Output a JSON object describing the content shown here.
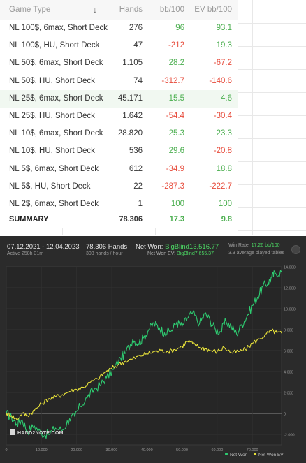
{
  "table": {
    "headers": {
      "type": "Game Type",
      "hands": "Hands",
      "bb": "bb/100",
      "ev": "EV bb/100"
    },
    "rows": [
      {
        "type": "NL 100$, 6max, Short Deck",
        "hands": "276",
        "bb": "96",
        "ev": "93.1"
      },
      {
        "type": "NL 100$, HU, Short Deck",
        "hands": "47",
        "bb": "-212",
        "ev": "19.3"
      },
      {
        "type": "NL 50$, 6max, Short Deck",
        "hands": "1.105",
        "bb": "28.2",
        "ev": "-67.2"
      },
      {
        "type": "NL 50$, HU, Short Deck",
        "hands": "74",
        "bb": "-312.7",
        "ev": "-140.6"
      },
      {
        "type": "NL 25$, 6max, Short Deck",
        "hands": "45.171",
        "bb": "15.5",
        "ev": "4.6"
      },
      {
        "type": "NL 25$, HU, Short Deck",
        "hands": "1.642",
        "bb": "-54.4",
        "ev": "-30.4"
      },
      {
        "type": "NL 10$, 6max, Short Deck",
        "hands": "28.820",
        "bb": "25.3",
        "ev": "23.3"
      },
      {
        "type": "NL 10$, HU, Short Deck",
        "hands": "536",
        "bb": "29.6",
        "ev": "-20.8"
      },
      {
        "type": "NL 5$, 6max, Short Deck",
        "hands": "612",
        "bb": "-34.9",
        "ev": "18.8"
      },
      {
        "type": "NL 5$, HU, Short Deck",
        "hands": "22",
        "bb": "-287.3",
        "ev": "-222.7"
      },
      {
        "type": "NL 2$, 6max, Short Deck",
        "hands": "1",
        "bb": "100",
        "ev": "100"
      }
    ],
    "summary": {
      "type": "SUMMARY",
      "hands": "78.306",
      "bb": "17.3",
      "ev": "9.8"
    }
  },
  "graph": {
    "date_range": "07.12.2021 - 12.04.2023",
    "active": "Active 258h 31m",
    "hands": "78.306 Hands",
    "rate": "303 hands / hour",
    "net_won_label": "Net Won:",
    "net_won_value": "BigBlind13,516.77",
    "ev_label": "Net Won EV:",
    "ev_value": "BigBlind7,655.37",
    "win_rate_label": "Win Rate:",
    "win_rate_value": "17.26 bb/100",
    "tables": "3.3 average played tables",
    "logo": "HAND2NOTE.COM",
    "legend_net": "Net Won",
    "legend_ev": "Net Won EV"
  },
  "chart_data": {
    "type": "line",
    "xlim": [
      0,
      78306
    ],
    "ylim": [
      -3000,
      14000
    ],
    "x_ticks": [
      "0",
      "10.000",
      "20.000",
      "30.000",
      "40.000",
      "50.000",
      "60.000",
      "70.000"
    ],
    "y_ticks": [
      "14.000",
      "12.000",
      "10.000",
      "8.000",
      "6.000",
      "4.000",
      "2.000",
      "0",
      "-2.000"
    ],
    "series": [
      {
        "name": "Net Won",
        "color": "#2ecc71",
        "points": [
          [
            0,
            0
          ],
          [
            1500,
            -400
          ],
          [
            3000,
            -1000
          ],
          [
            4500,
            -600
          ],
          [
            6000,
            -1700
          ],
          [
            8000,
            -1200
          ],
          [
            10000,
            -1900
          ],
          [
            12000,
            -2000
          ],
          [
            14000,
            -1400
          ],
          [
            16000,
            -1600
          ],
          [
            18000,
            -500
          ],
          [
            19500,
            -300
          ],
          [
            21000,
            700
          ],
          [
            23000,
            1500
          ],
          [
            25000,
            2300
          ],
          [
            27000,
            2800
          ],
          [
            28500,
            3400
          ],
          [
            30500,
            4200
          ],
          [
            32500,
            5300
          ],
          [
            34000,
            5800
          ],
          [
            36000,
            7100
          ],
          [
            37500,
            6700
          ],
          [
            39000,
            7200
          ],
          [
            40500,
            8000
          ],
          [
            42000,
            8600
          ],
          [
            43500,
            8200
          ],
          [
            45000,
            7700
          ],
          [
            47000,
            7900
          ],
          [
            48500,
            8700
          ],
          [
            50000,
            8300
          ],
          [
            51500,
            9100
          ],
          [
            53000,
            9600
          ],
          [
            55000,
            8600
          ],
          [
            56500,
            9500
          ],
          [
            58000,
            8900
          ],
          [
            59500,
            8000
          ],
          [
            61000,
            7800
          ],
          [
            62500,
            8800
          ],
          [
            64000,
            8300
          ],
          [
            65500,
            7600
          ],
          [
            67000,
            8500
          ],
          [
            68500,
            9300
          ],
          [
            70000,
            10300
          ],
          [
            71500,
            11100
          ],
          [
            73000,
            12100
          ],
          [
            74500,
            12500
          ],
          [
            75500,
            13000
          ],
          [
            76500,
            13400
          ],
          [
            78306,
            13516
          ]
        ]
      },
      {
        "name": "Net Won EV",
        "color": "#e8e23a",
        "points": [
          [
            0,
            0
          ],
          [
            1500,
            -200
          ],
          [
            3000,
            -600
          ],
          [
            4500,
            0
          ],
          [
            6000,
            -200
          ],
          [
            8000,
            300
          ],
          [
            10000,
            900
          ],
          [
            12000,
            1400
          ],
          [
            14000,
            1600
          ],
          [
            16000,
            1800
          ],
          [
            18000,
            2100
          ],
          [
            20000,
            2300
          ],
          [
            22000,
            2500
          ],
          [
            24000,
            3000
          ],
          [
            26000,
            3300
          ],
          [
            28000,
            3900
          ],
          [
            30000,
            4300
          ],
          [
            32000,
            4700
          ],
          [
            34000,
            5000
          ],
          [
            36000,
            5200
          ],
          [
            38000,
            5500
          ],
          [
            40000,
            5700
          ],
          [
            42000,
            5900
          ],
          [
            44000,
            6000
          ],
          [
            46000,
            5900
          ],
          [
            48000,
            6100
          ],
          [
            50000,
            6400
          ],
          [
            51500,
            6900
          ],
          [
            53000,
            6700
          ],
          [
            55000,
            6300
          ],
          [
            56500,
            6200
          ],
          [
            58000,
            6000
          ],
          [
            60000,
            5900
          ],
          [
            62000,
            6300
          ],
          [
            64000,
            5800
          ],
          [
            66000,
            5900
          ],
          [
            68000,
            6100
          ],
          [
            70000,
            6700
          ],
          [
            72000,
            7100
          ],
          [
            74000,
            7600
          ],
          [
            75500,
            7900
          ],
          [
            77000,
            7700
          ],
          [
            78306,
            7655
          ]
        ]
      }
    ]
  },
  "colors": {
    "positive": "#4caf50",
    "negative": "#e74c3c",
    "net_won": "#2ecc71",
    "net_won_ev": "#e8e23a",
    "graph_bg": "#2b2b2b"
  },
  "icons": {
    "sort": "arrow-down-icon",
    "settings": "graph-options-icon"
  }
}
